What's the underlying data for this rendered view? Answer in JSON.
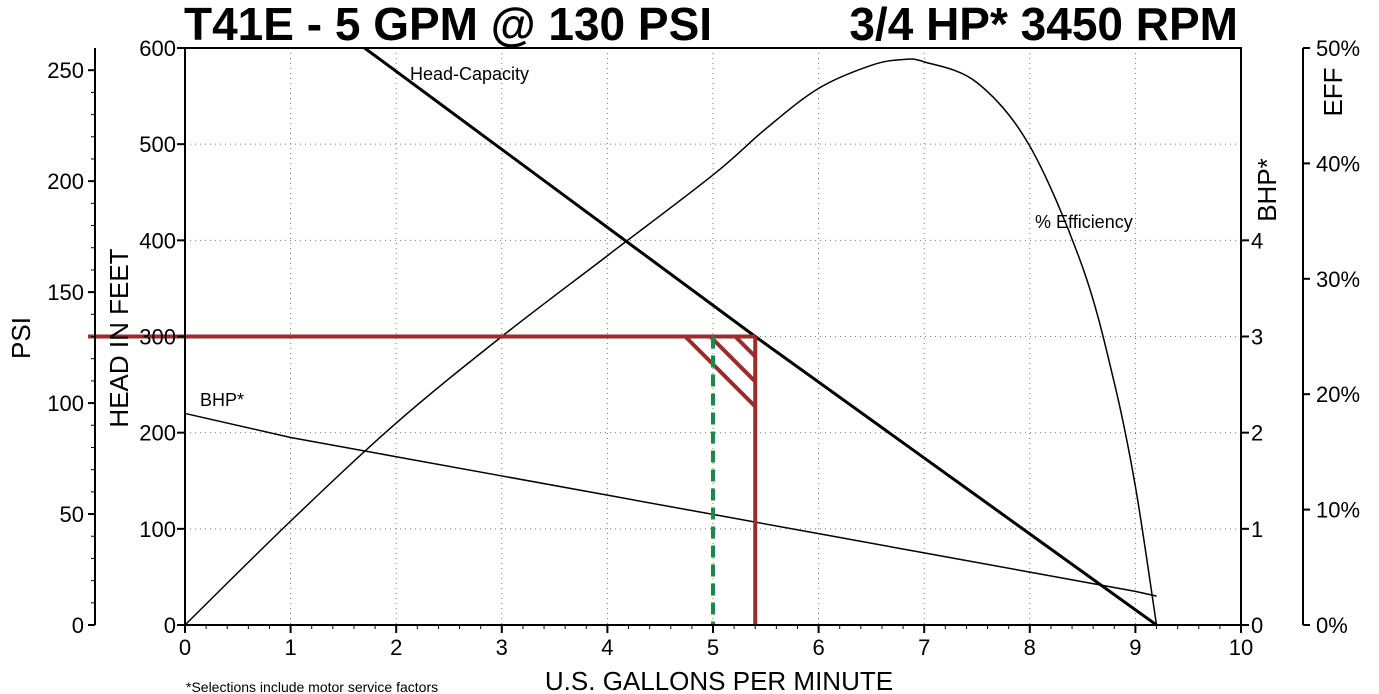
{
  "chart_data": {
    "type": "line",
    "title_left": "T41E - 5 GPM @ 130 PSI",
    "title_right": "3/4 HP* 3450 RPM",
    "xlabel": "U.S. GALLONS PER MINUTE",
    "xlim": [
      0,
      10
    ],
    "x_ticks": [
      "0",
      "1",
      "2",
      "3",
      "4",
      "5",
      "6",
      "7",
      "8",
      "9",
      "10"
    ],
    "axes": {
      "psi": {
        "label": "PSI",
        "lim": [
          0,
          260
        ],
        "ticks": [
          "0",
          "50",
          "100",
          "150",
          "200",
          "250"
        ]
      },
      "head": {
        "label": "HEAD IN FEET",
        "lim": [
          0,
          600
        ],
        "ticks": [
          "0",
          "100",
          "200",
          "300",
          "400",
          "500",
          "600"
        ]
      },
      "bhp": {
        "label": "BHP*",
        "lim": [
          0,
          6
        ],
        "ticks": [
          "0",
          "1",
          "2",
          "3",
          "4"
        ]
      },
      "eff": {
        "label": "EFF",
        "lim": [
          0,
          50
        ],
        "ticks": [
          "0%",
          "10%",
          "20%",
          "30%",
          "40%",
          "50%"
        ]
      }
    },
    "grid": true,
    "series": [
      {
        "name": "Head-Capacity",
        "axis": "head",
        "x": [
          1.7,
          5.4,
          9.2
        ],
        "y": [
          600,
          300,
          0
        ]
      },
      {
        "name": "% Efficiency",
        "axis": "eff",
        "x": [
          0,
          1,
          2,
          3,
          4,
          5,
          5.5,
          6,
          6.5,
          6.8,
          7,
          7.5,
          8,
          8.5,
          8.8,
          9,
          9.2
        ],
        "y": [
          0,
          9,
          17.5,
          25,
          32,
          39,
          43,
          46.5,
          48.5,
          49,
          48.8,
          47,
          41.5,
          31,
          21,
          12,
          0
        ]
      },
      {
        "name": "BHP*",
        "axis": "bhp",
        "x": [
          0,
          1,
          2,
          3,
          4,
          5,
          6,
          7,
          8,
          9,
          9.2
        ],
        "y": [
          2.2,
          1.95,
          1.75,
          1.55,
          1.35,
          1.15,
          0.95,
          0.75,
          0.55,
          0.35,
          0.3
        ]
      }
    ],
    "operating_point": {
      "gpm": 5.4,
      "head": 300
    },
    "selection_line_gpm": 5,
    "highlight_color": "#9e2a2b",
    "selection_color": "#1a8a4a",
    "footnote": "*Selections include motor service factors"
  }
}
